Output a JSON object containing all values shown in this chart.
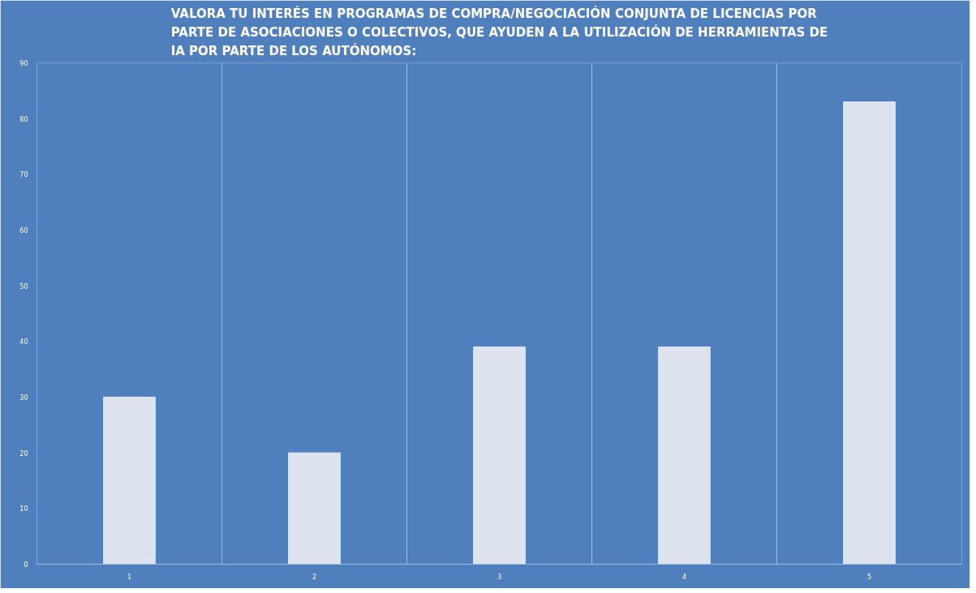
{
  "chart_data": {
    "type": "bar",
    "title": "VALORA TU INTERÉS EN PROGRAMAS DE COMPRA/NEGOCIACIÓN CONJUNTA DE LICENCIAS POR\nPARTE DE ASOCIACIONES O COLECTIVOS, QUE AYUDEN A LA UTILIZACIÓN DE HERRAMIENTAS DE\nIA POR PARTE DE LOS AUTÓNOMOS:",
    "categories": [
      "1",
      "2",
      "3",
      "4",
      "5"
    ],
    "values": [
      30,
      20,
      39,
      39,
      83
    ],
    "color": "#dce3ec",
    "ylim": [
      0,
      90
    ],
    "yticks": [
      0,
      10,
      20,
      30,
      40,
      50,
      60,
      70,
      80,
      90
    ],
    "grid": "x"
  }
}
